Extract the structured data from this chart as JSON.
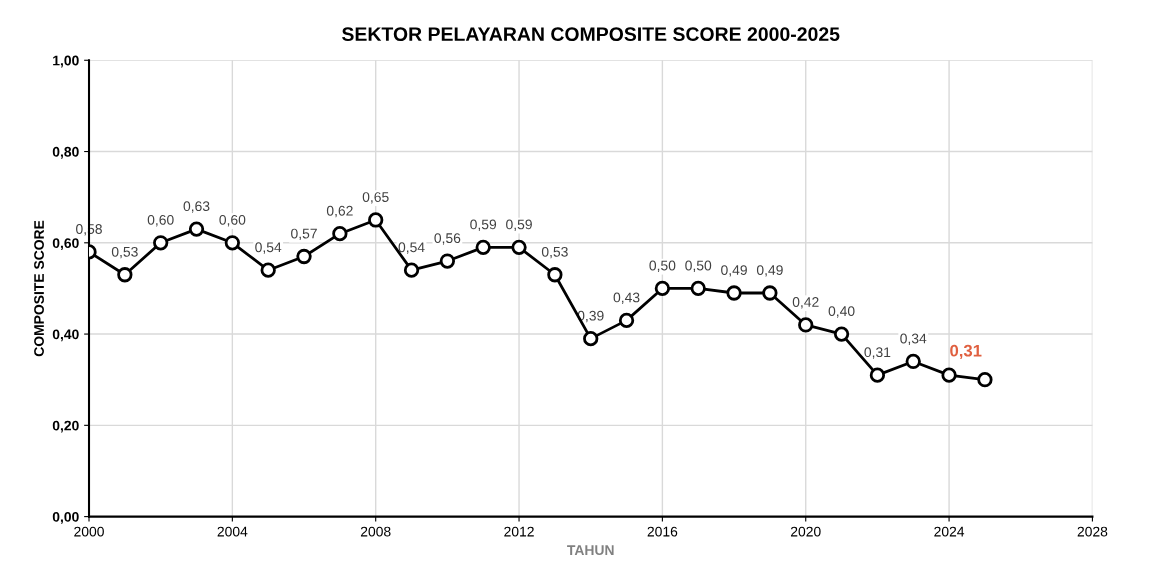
{
  "chart_data": {
    "type": "line",
    "title": "SEKTOR PELAYARAN COMPOSITE SCORE 2000-2025",
    "xlabel": "TAHUN",
    "ylabel": "COMPOSITE SCORE",
    "series": [
      {
        "color": "#000000",
        "x": [
          2000,
          2001,
          2002,
          2003,
          2004,
          2005,
          2006,
          2007,
          2008,
          2009,
          2010,
          2011,
          2012,
          2013,
          2014,
          2015,
          2016,
          2017,
          2018,
          2019,
          2020,
          2021,
          2022,
          2023,
          2024,
          2025
        ],
        "values": [
          0.58,
          0.53,
          0.6,
          0.63,
          0.6,
          0.54,
          0.57,
          0.62,
          0.65,
          0.54,
          0.56,
          0.59,
          0.59,
          0.53,
          0.39,
          0.43,
          0.5,
          0.5,
          0.49,
          0.49,
          0.42,
          0.4,
          0.31,
          0.34,
          0.31,
          0.3
        ],
        "value_labels": [
          "0,58",
          "0,53",
          "0,60",
          "0,63",
          "0,60",
          "0,54",
          "0,57",
          "0,62",
          "0,65",
          "0,54",
          "0,56",
          "0,59",
          "0,59",
          "0,53",
          "0,39",
          "0,43",
          "0,50",
          "0,50",
          "0,49",
          "0,49",
          "0,42",
          "0,40",
          "0,31",
          "0,34",
          null,
          null
        ]
      }
    ],
    "annotations": [
      {
        "text": "0,31",
        "x": 2024,
        "y": 0.31
      }
    ],
    "xlim": [
      2000,
      2028
    ],
    "xticks": [
      2000,
      2004,
      2008,
      2012,
      2016,
      2020,
      2024,
      2028
    ],
    "ylim": [
      0,
      1
    ],
    "yticks": [
      {
        "value": 0,
        "label": "0,00"
      },
      {
        "value": 0.2,
        "label": "0,20"
      },
      {
        "value": 0.4,
        "label": "0,40"
      },
      {
        "value": 0.6,
        "label": "0,60"
      },
      {
        "value": 0.8,
        "label": "0,80"
      },
      {
        "value": 1,
        "label": "1,00"
      }
    ],
    "grid": true,
    "marker": "circle",
    "line_style": "solid",
    "legend": false
  }
}
